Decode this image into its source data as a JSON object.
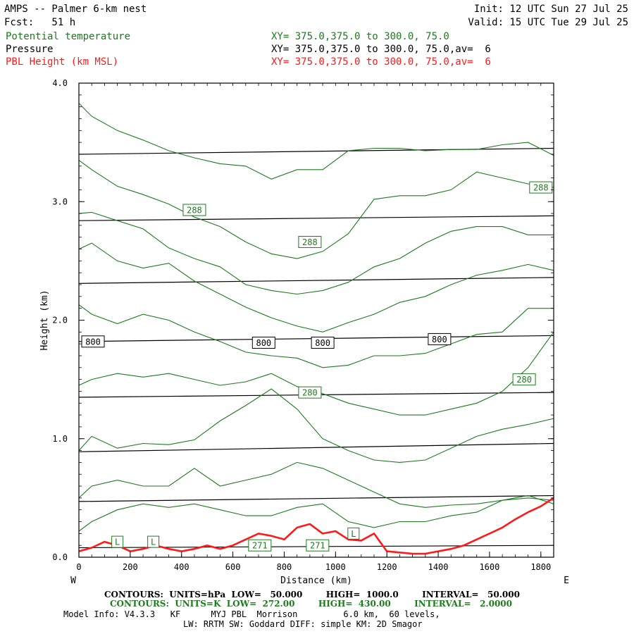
{
  "header": {
    "title": "AMPS -- Palmer 6-km nest",
    "fcst": "Fcst:   51 h",
    "init": "Init: 12 UTC Sun 27 Jul 25",
    "valid": "Valid: 15 UTC Tue 29 Jul 25"
  },
  "legend": {
    "theta_label": "Potential temperature",
    "theta_xy": "XY= 375.0,375.0 to 300.0, 75.0",
    "pressure_label": "Pressure",
    "pressure_xy": "XY= 375.0,375.0 to 300.0, 75.0,av=  6",
    "pbl_label": "PBL Height (km MSL)",
    "pbl_xy": "XY= 375.0,375.0 to 300.0, 75.0,av=  6"
  },
  "colors": {
    "theta": "#1f7a1f",
    "pressure": "#000000",
    "pbl": "#ff1a1a"
  },
  "chart_data": {
    "type": "line",
    "xlabel": "Distance (km)",
    "ylabel": "Height (km)",
    "xlim": [
      0,
      1850
    ],
    "ylim": [
      0,
      4.0
    ],
    "x_ticks": [
      "0",
      "200",
      "400",
      "600",
      "800",
      "1000",
      "1200",
      "1400",
      "1600",
      "1800"
    ],
    "y_ticks": [
      "0.0",
      "1.0",
      "2.0",
      "3.0",
      "4.0"
    ],
    "left_end": "W",
    "right_end": "E",
    "pressure_isobars": [
      {
        "x": [
          0,
          1850
        ],
        "y": [
          0.08,
          0.1
        ]
      },
      {
        "x": [
          0,
          1850
        ],
        "y": [
          0.47,
          0.52
        ]
      },
      {
        "x": [
          0,
          1850
        ],
        "y": [
          0.89,
          0.96
        ]
      },
      {
        "x": [
          0,
          1850
        ],
        "y": [
          1.35,
          1.39
        ]
      },
      {
        "x": [
          0,
          1850
        ],
        "y": [
          1.82,
          1.87
        ]
      },
      {
        "x": [
          0,
          1850
        ],
        "y": [
          2.31,
          2.36
        ]
      },
      {
        "x": [
          0,
          1850
        ],
        "y": [
          2.84,
          2.88
        ]
      },
      {
        "x": [
          0,
          1850
        ],
        "y": [
          3.4,
          3.45
        ]
      }
    ],
    "theta_isentropes": [
      {
        "x": [
          0,
          50,
          150,
          250,
          350,
          450,
          550,
          650,
          750,
          850,
          950,
          1050,
          1150,
          1250,
          1350,
          1450,
          1550,
          1650,
          1750,
          1850
        ],
        "y": [
          3.83,
          3.72,
          3.6,
          3.52,
          3.43,
          3.37,
          3.32,
          3.3,
          3.19,
          3.27,
          3.27,
          3.43,
          3.45,
          3.45,
          3.43,
          3.44,
          3.44,
          3.48,
          3.5,
          3.39
        ]
      },
      {
        "x": [
          0,
          50,
          150,
          250,
          350,
          450,
          550,
          650,
          750,
          850,
          950,
          1050,
          1150,
          1250,
          1350,
          1450,
          1550,
          1650,
          1750,
          1850
        ],
        "y": [
          3.35,
          3.27,
          3.13,
          3.06,
          2.98,
          2.87,
          2.79,
          2.66,
          2.56,
          2.52,
          2.58,
          2.73,
          3.02,
          3.05,
          3.05,
          3.1,
          3.25,
          3.2,
          3.15,
          3.12
        ]
      },
      {
        "x": [
          0,
          50,
          150,
          250,
          350,
          450,
          550,
          650,
          750,
          850,
          950,
          1050,
          1150,
          1250,
          1350,
          1450,
          1550,
          1650,
          1750,
          1850
        ],
        "y": [
          2.9,
          2.91,
          2.84,
          2.77,
          2.61,
          2.52,
          2.45,
          2.3,
          2.25,
          2.22,
          2.25,
          2.32,
          2.45,
          2.52,
          2.65,
          2.75,
          2.79,
          2.79,
          2.72,
          2.72
        ]
      },
      {
        "x": [
          0,
          50,
          150,
          250,
          350,
          450,
          550,
          650,
          750,
          850,
          950,
          1050,
          1150,
          1250,
          1350,
          1450,
          1550,
          1650,
          1750,
          1850
        ],
        "y": [
          2.6,
          2.65,
          2.5,
          2.44,
          2.48,
          2.33,
          2.22,
          2.11,
          2.02,
          1.95,
          1.9,
          1.98,
          2.05,
          2.15,
          2.2,
          2.3,
          2.38,
          2.42,
          2.47,
          2.42
        ]
      },
      {
        "x": [
          0,
          50,
          150,
          250,
          350,
          450,
          550,
          650,
          750,
          850,
          950,
          1050,
          1150,
          1250,
          1350,
          1450,
          1550,
          1650,
          1750,
          1850
        ],
        "y": [
          2.13,
          2.05,
          1.97,
          2.05,
          2.0,
          1.9,
          1.82,
          1.73,
          1.7,
          1.68,
          1.6,
          1.62,
          1.7,
          1.7,
          1.72,
          1.8,
          1.88,
          1.9,
          2.1,
          2.1
        ]
      },
      {
        "x": [
          0,
          50,
          150,
          250,
          350,
          450,
          550,
          650,
          750,
          850,
          950,
          1050,
          1150,
          1250,
          1350,
          1450,
          1550,
          1650,
          1750,
          1850
        ],
        "y": [
          1.45,
          1.5,
          1.55,
          1.52,
          1.55,
          1.5,
          1.45,
          1.48,
          1.55,
          1.44,
          1.38,
          1.3,
          1.25,
          1.2,
          1.2,
          1.25,
          1.3,
          1.4,
          1.6,
          1.9
        ]
      },
      {
        "x": [
          0,
          50,
          150,
          250,
          350,
          450,
          550,
          650,
          750,
          850,
          950,
          1050,
          1150,
          1250,
          1350,
          1450,
          1550,
          1650,
          1750,
          1850
        ],
        "y": [
          0.9,
          1.02,
          0.92,
          0.96,
          0.95,
          0.99,
          1.15,
          1.28,
          1.42,
          1.25,
          1.0,
          0.9,
          0.82,
          0.8,
          0.82,
          0.92,
          1.02,
          1.08,
          1.12,
          1.17
        ]
      },
      {
        "x": [
          0,
          50,
          150,
          250,
          350,
          450,
          550,
          650,
          750,
          850,
          950,
          1050,
          1150,
          1250,
          1350,
          1450,
          1550,
          1650,
          1750,
          1850
        ],
        "y": [
          0.5,
          0.6,
          0.65,
          0.6,
          0.6,
          0.75,
          0.6,
          0.65,
          0.7,
          0.8,
          0.75,
          0.65,
          0.55,
          0.45,
          0.42,
          0.44,
          0.45,
          0.48,
          0.5,
          0.48
        ]
      },
      {
        "x": [
          0,
          50,
          150,
          250,
          350,
          450,
          550,
          650,
          750,
          850,
          950,
          1050,
          1150,
          1250,
          1350,
          1450,
          1550,
          1650,
          1750,
          1850
        ],
        "y": [
          0.22,
          0.3,
          0.4,
          0.45,
          0.42,
          0.45,
          0.4,
          0.35,
          0.35,
          0.42,
          0.45,
          0.3,
          0.25,
          0.3,
          0.3,
          0.35,
          0.38,
          0.48,
          0.52,
          0.45
        ]
      }
    ],
    "pbl_height": {
      "x": [
        0,
        50,
        100,
        150,
        200,
        250,
        300,
        350,
        400,
        450,
        500,
        550,
        600,
        650,
        700,
        750,
        800,
        850,
        900,
        950,
        1000,
        1050,
        1100,
        1150,
        1200,
        1250,
        1300,
        1350,
        1400,
        1450,
        1500,
        1550,
        1600,
        1650,
        1700,
        1750,
        1800,
        1850
      ],
      "y": [
        0.05,
        0.08,
        0.13,
        0.1,
        0.05,
        0.07,
        0.1,
        0.07,
        0.05,
        0.07,
        0.1,
        0.07,
        0.1,
        0.15,
        0.2,
        0.18,
        0.15,
        0.25,
        0.28,
        0.2,
        0.22,
        0.15,
        0.14,
        0.2,
        0.05,
        0.04,
        0.03,
        0.03,
        0.05,
        0.07,
        0.1,
        0.15,
        0.2,
        0.25,
        0.32,
        0.38,
        0.43,
        0.5
      ]
    },
    "contour_labels": [
      {
        "text": "288",
        "x": 450,
        "y": 2.93,
        "series": "theta"
      },
      {
        "text": "288",
        "x": 900,
        "y": 2.66,
        "series": "theta"
      },
      {
        "text": "288",
        "x": 1800,
        "y": 3.12,
        "series": "theta"
      },
      {
        "text": "280",
        "x": 900,
        "y": 1.39,
        "series": "theta"
      },
      {
        "text": "280",
        "x": 1735,
        "y": 1.5,
        "series": "theta"
      },
      {
        "text": "800",
        "x": 55,
        "y": 1.82,
        "series": "pressure"
      },
      {
        "text": "800",
        "x": 720,
        "y": 1.81,
        "series": "pressure"
      },
      {
        "text": "800",
        "x": 950,
        "y": 1.81,
        "series": "pressure"
      },
      {
        "text": "800",
        "x": 1405,
        "y": 1.84,
        "series": "pressure"
      },
      {
        "text": "271",
        "x": 705,
        "y": 0.1,
        "series": "theta"
      },
      {
        "text": "271",
        "x": 930,
        "y": 0.1,
        "series": "theta"
      },
      {
        "text": "L",
        "x": 150,
        "y": 0.13,
        "series": "theta"
      },
      {
        "text": "L",
        "x": 290,
        "y": 0.13,
        "series": "theta"
      },
      {
        "text": "L",
        "x": 1070,
        "y": 0.2,
        "series": "theta"
      }
    ]
  },
  "footer": {
    "contours_p": "CONTOURS:  UNITS=hPa  LOW=   50.000        HIGH=  1000.0        INTERVAL=   50.000",
    "contours_t": "CONTOURS:  UNITS=K  LOW=  272.00        HIGH=  430.00        INTERVAL=   2.0000",
    "model_info": "Model Info: V4.3.3   KF      MYJ PBL  Morrison         6.0 km,  60 levels,",
    "physics": "LW: RRTM SW: Goddard DIFF: simple KM: 2D Smagor"
  }
}
